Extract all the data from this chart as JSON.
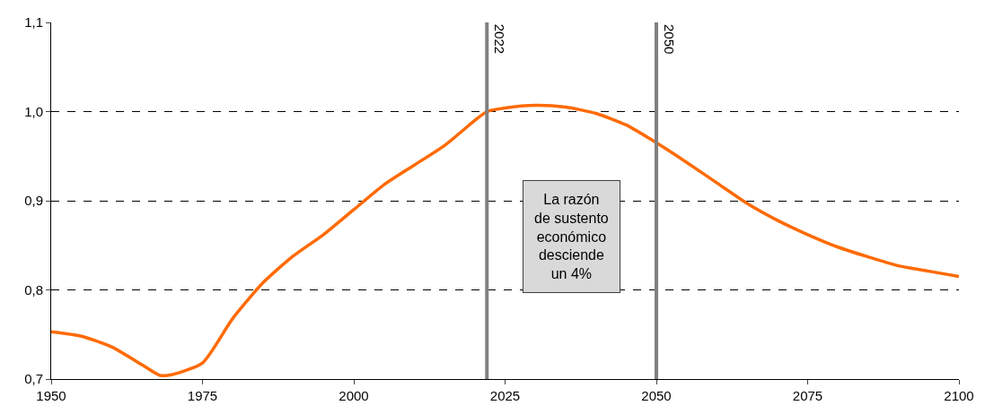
{
  "chart_data": {
    "type": "line",
    "x": [
      1950,
      1955,
      1960,
      1965,
      1968,
      1970,
      1975,
      1980,
      1985,
      1990,
      1995,
      2000,
      2005,
      2010,
      2015,
      2020,
      2022,
      2025,
      2030,
      2035,
      2040,
      2045,
      2050,
      2055,
      2060,
      2065,
      2070,
      2075,
      2080,
      2085,
      2090,
      2095,
      2100
    ],
    "series": [
      {
        "color": "#ff6a00",
        "values": [
          0.753,
          0.748,
          0.736,
          0.716,
          0.704,
          0.705,
          0.718,
          0.768,
          0.808,
          0.838,
          0.862,
          0.89,
          0.918,
          0.94,
          0.962,
          0.99,
          1.0,
          1.004,
          1.007,
          1.005,
          0.998,
          0.985,
          0.965,
          0.943,
          0.92,
          0.897,
          0.878,
          0.862,
          0.848,
          0.837,
          0.827,
          0.821,
          0.815
        ]
      }
    ],
    "xlim": [
      1950,
      2100
    ],
    "xticks": [
      1950,
      1975,
      2000,
      2025,
      2050,
      2075,
      2100
    ],
    "ylim": [
      0.7,
      1.1
    ],
    "yticks": [
      {
        "value": 0.7,
        "label": "0,7"
      },
      {
        "value": 0.8,
        "label": "0,8"
      },
      {
        "value": 0.9,
        "label": "0,9"
      },
      {
        "value": 1.0,
        "label": "1,0"
      },
      {
        "value": 1.1,
        "label": "1,1"
      }
    ],
    "grid": "y",
    "legend": false,
    "marker": "none",
    "line_style": "solid",
    "ref_lines": [
      {
        "axis": "x",
        "value": 2022,
        "label": "2022",
        "color": "#808080"
      },
      {
        "axis": "x",
        "value": 2050,
        "label": "2050",
        "color": "#808080"
      }
    ],
    "annotations": [
      "La razón\nde sustento\neconómico\ndesciende\nun 4%"
    ]
  }
}
